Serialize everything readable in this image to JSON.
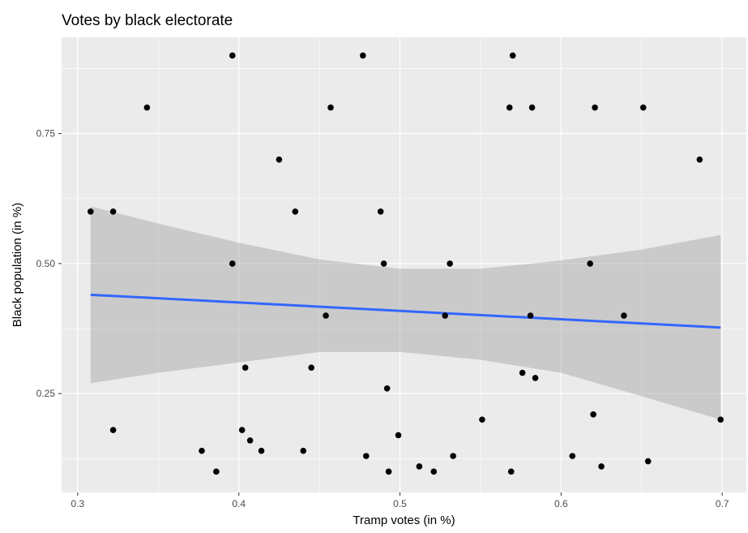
{
  "chart_data": {
    "type": "scatter",
    "title": "Votes by black electorate",
    "xlabel": "Tramp votes (in %)",
    "ylabel": "Black population (in %)",
    "xlim": [
      0.29,
      0.715
    ],
    "ylim": [
      0.06,
      0.935
    ],
    "x_ticks": [
      0.3,
      0.4,
      0.5,
      0.6,
      0.7
    ],
    "x_tick_labels": [
      "0.3",
      "0.4",
      "0.5",
      "0.6",
      "0.7"
    ],
    "y_ticks": [
      0.25,
      0.5,
      0.75
    ],
    "y_tick_labels": [
      "0.25",
      "0.50",
      "0.75"
    ],
    "grid": true,
    "colors": {
      "panel": "#ebebeb",
      "grid": "#ffffff",
      "points": "#000000",
      "trend_line": "#3366ff",
      "confidence_band": "#999999"
    },
    "points": [
      {
        "x": 0.396,
        "y": 0.9
      },
      {
        "x": 0.477,
        "y": 0.9
      },
      {
        "x": 0.57,
        "y": 0.9
      },
      {
        "x": 0.343,
        "y": 0.8
      },
      {
        "x": 0.457,
        "y": 0.8
      },
      {
        "x": 0.568,
        "y": 0.8
      },
      {
        "x": 0.582,
        "y": 0.8
      },
      {
        "x": 0.621,
        "y": 0.8
      },
      {
        "x": 0.651,
        "y": 0.8
      },
      {
        "x": 0.425,
        "y": 0.7
      },
      {
        "x": 0.686,
        "y": 0.7
      },
      {
        "x": 0.308,
        "y": 0.6
      },
      {
        "x": 0.322,
        "y": 0.6
      },
      {
        "x": 0.435,
        "y": 0.6
      },
      {
        "x": 0.488,
        "y": 0.6
      },
      {
        "x": 0.396,
        "y": 0.5
      },
      {
        "x": 0.49,
        "y": 0.5
      },
      {
        "x": 0.531,
        "y": 0.5
      },
      {
        "x": 0.618,
        "y": 0.5
      },
      {
        "x": 0.454,
        "y": 0.4
      },
      {
        "x": 0.528,
        "y": 0.4
      },
      {
        "x": 0.581,
        "y": 0.4
      },
      {
        "x": 0.639,
        "y": 0.4
      },
      {
        "x": 0.404,
        "y": 0.3
      },
      {
        "x": 0.445,
        "y": 0.3
      },
      {
        "x": 0.576,
        "y": 0.29
      },
      {
        "x": 0.584,
        "y": 0.28
      },
      {
        "x": 0.492,
        "y": 0.26
      },
      {
        "x": 0.62,
        "y": 0.21
      },
      {
        "x": 0.551,
        "y": 0.2
      },
      {
        "x": 0.699,
        "y": 0.2
      },
      {
        "x": 0.322,
        "y": 0.18
      },
      {
        "x": 0.402,
        "y": 0.18
      },
      {
        "x": 0.499,
        "y": 0.17
      },
      {
        "x": 0.407,
        "y": 0.16
      },
      {
        "x": 0.377,
        "y": 0.14
      },
      {
        "x": 0.414,
        "y": 0.14
      },
      {
        "x": 0.44,
        "y": 0.14
      },
      {
        "x": 0.479,
        "y": 0.13
      },
      {
        "x": 0.533,
        "y": 0.13
      },
      {
        "x": 0.607,
        "y": 0.13
      },
      {
        "x": 0.654,
        "y": 0.12
      },
      {
        "x": 0.512,
        "y": 0.11
      },
      {
        "x": 0.625,
        "y": 0.11
      },
      {
        "x": 0.386,
        "y": 0.1
      },
      {
        "x": 0.493,
        "y": 0.1
      },
      {
        "x": 0.521,
        "y": 0.1
      },
      {
        "x": 0.569,
        "y": 0.1
      }
    ],
    "trend_line": {
      "x": [
        0.308,
        0.699
      ],
      "y": [
        0.44,
        0.377
      ]
    },
    "confidence_band": {
      "x": [
        0.308,
        0.35,
        0.4,
        0.45,
        0.5,
        0.55,
        0.6,
        0.65,
        0.699
      ],
      "upper": [
        0.61,
        0.577,
        0.54,
        0.508,
        0.49,
        0.49,
        0.506,
        0.527,
        0.555
      ],
      "lower": [
        0.27,
        0.29,
        0.31,
        0.33,
        0.33,
        0.315,
        0.29,
        0.245,
        0.2
      ]
    }
  }
}
